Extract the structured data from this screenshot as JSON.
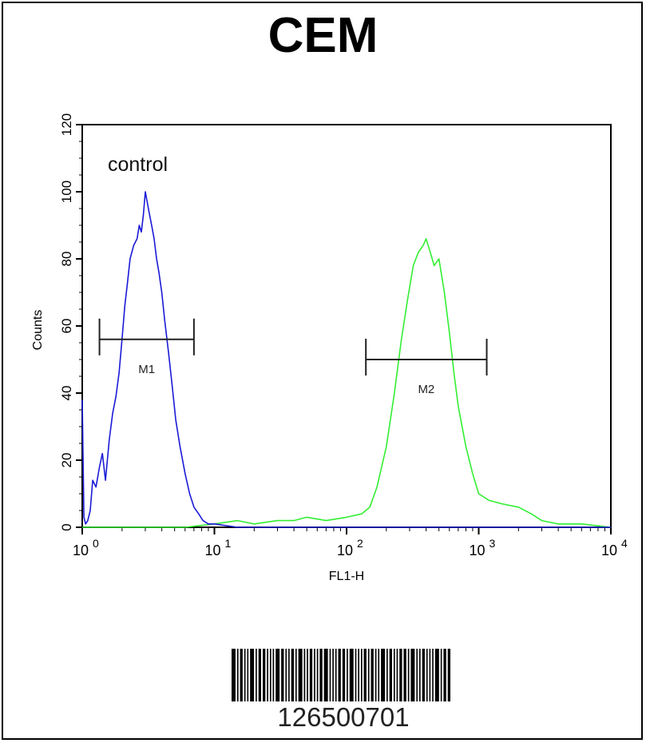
{
  "colors": {
    "control": "#1a1ad6",
    "sample": "#33ee33",
    "axis": "#000000"
  },
  "chart_data": {
    "type": "line",
    "title": "CEM",
    "xlabel": "FL1-H",
    "ylabel": "Counts",
    "x_scale": "log10",
    "xlim": [
      1,
      10000
    ],
    "ylim": [
      0,
      120
    ],
    "yticks": [
      "0",
      "20",
      "40",
      "60",
      "80",
      "100",
      "120"
    ],
    "xtick_labels": [
      {
        "base": "10",
        "exp": "0"
      },
      {
        "base": "10",
        "exp": "1"
      },
      {
        "base": "10",
        "exp": "2"
      },
      {
        "base": "10",
        "exp": "3"
      },
      {
        "base": "10",
        "exp": "4"
      }
    ],
    "annotation": "control",
    "series": [
      {
        "x": [
          1.0,
          1.03,
          1.06,
          1.1,
          1.15,
          1.2,
          1.27,
          1.35,
          1.42,
          1.5,
          1.6,
          1.7,
          1.8,
          1.9,
          2.0,
          2.1,
          2.2,
          2.3,
          2.45,
          2.6,
          2.7,
          2.8,
          2.9,
          3.0,
          3.1,
          3.2,
          3.35,
          3.5,
          3.65,
          3.8,
          4.0,
          4.2,
          4.5,
          4.8,
          5.1,
          5.5,
          6.0,
          6.5,
          7.0,
          7.6,
          8.2,
          9.0,
          10,
          15,
          30,
          60,
          100,
          300,
          1000,
          10000
        ],
        "y": [
          38,
          3,
          1,
          2,
          5,
          14,
          12,
          18,
          22,
          14,
          26,
          34,
          39,
          46,
          56,
          66,
          73,
          80,
          84,
          86,
          90,
          88,
          93,
          100,
          97,
          94,
          90,
          86,
          80,
          76,
          70,
          62,
          52,
          42,
          32,
          24,
          16,
          10,
          6,
          4,
          2,
          1,
          1,
          0,
          0,
          0,
          0,
          0,
          0,
          0
        ]
      },
      {
        "x": [
          1,
          3,
          6,
          10,
          15,
          20,
          30,
          40,
          50,
          70,
          100,
          130,
          150,
          170,
          200,
          230,
          260,
          290,
          320,
          350,
          380,
          400,
          430,
          460,
          500,
          550,
          600,
          650,
          700,
          800,
          900,
          1000,
          1200,
          1500,
          2000,
          2500,
          3000,
          4000,
          6000,
          10000
        ],
        "y": [
          0,
          0,
          0,
          1,
          2,
          1,
          2,
          2,
          3,
          2,
          3,
          4,
          6,
          12,
          24,
          40,
          56,
          68,
          78,
          82,
          84,
          86,
          82,
          78,
          80,
          70,
          58,
          46,
          36,
          24,
          16,
          10,
          8,
          7,
          6,
          4,
          2,
          1,
          1,
          0
        ]
      }
    ],
    "gates": [
      {
        "label": "M1",
        "x_start": 1.35,
        "x_end": 7.0,
        "y": 56
      },
      {
        "label": "M2",
        "x_start": 140,
        "x_end": 1150,
        "y": 50
      }
    ]
  },
  "barcode": {
    "number": "126500701"
  }
}
